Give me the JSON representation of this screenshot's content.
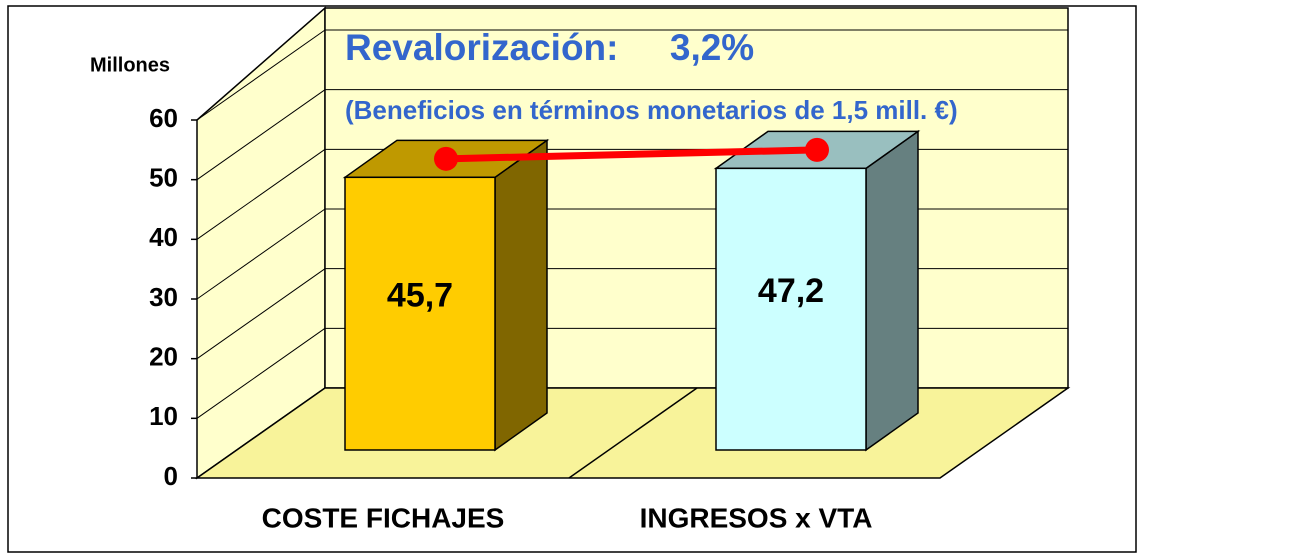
{
  "chart_data": {
    "type": "bar3d",
    "title": "Revalorización:     3,2%",
    "subtitle": "(Beneficios en términos monetarios de 1,5 mill. €)",
    "y_label": "Millones",
    "categories": [
      "COSTE FICHAJES",
      "INGRESOS x VTA"
    ],
    "values": [
      45.7,
      47.2
    ],
    "value_labels": [
      "45,7",
      "47,2"
    ],
    "colors": [
      "#ffcc00",
      "#ccffff"
    ],
    "line_color": "#ff0000",
    "ylim": [
      0,
      60
    ],
    "yticks": [
      0,
      10,
      20,
      30,
      40,
      50,
      60
    ],
    "grid": true
  }
}
